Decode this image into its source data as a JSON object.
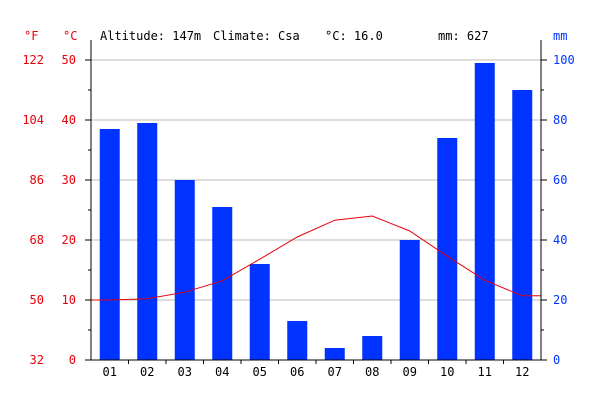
{
  "chart_data": {
    "type": "bar+line",
    "header": {
      "altitude": "Altitude: 147m",
      "climate": "Climate: Csa",
      "temp_avg": "°C: 16.0",
      "precip_total": "mm: 627"
    },
    "categories": [
      "01",
      "02",
      "03",
      "04",
      "05",
      "06",
      "07",
      "08",
      "09",
      "10",
      "11",
      "12"
    ],
    "axes": {
      "fahrenheit": {
        "unit": "°F",
        "ticks": [
          "122",
          "104",
          "86",
          "68",
          "50",
          "32"
        ]
      },
      "celsius": {
        "unit": "°C",
        "range": [
          0,
          50
        ],
        "ticks": [
          "50",
          "40",
          "30",
          "20",
          "10",
          "0"
        ]
      },
      "precipitation": {
        "unit": "mm",
        "range": [
          0,
          100
        ],
        "ticks": [
          "100",
          "80",
          "60",
          "40",
          "20",
          "0"
        ]
      }
    },
    "series": [
      {
        "type": "bar",
        "axis": "precipitation",
        "values": [
          77,
          79,
          60,
          51,
          32,
          13,
          4,
          8,
          40,
          74,
          99,
          90
        ]
      },
      {
        "type": "line",
        "axis": "celsius",
        "values": [
          10.0,
          10.2,
          11.3,
          13.2,
          16.8,
          20.5,
          23.3,
          24.0,
          21.5,
          17.3,
          13.3,
          10.7
        ]
      }
    ],
    "colors": {
      "bars": "#0033ff",
      "line": "#e8000b",
      "left_axis": "#e8000b",
      "right_axis": "#0033ff",
      "grid": "#bbbbbb"
    },
    "grid": true
  }
}
